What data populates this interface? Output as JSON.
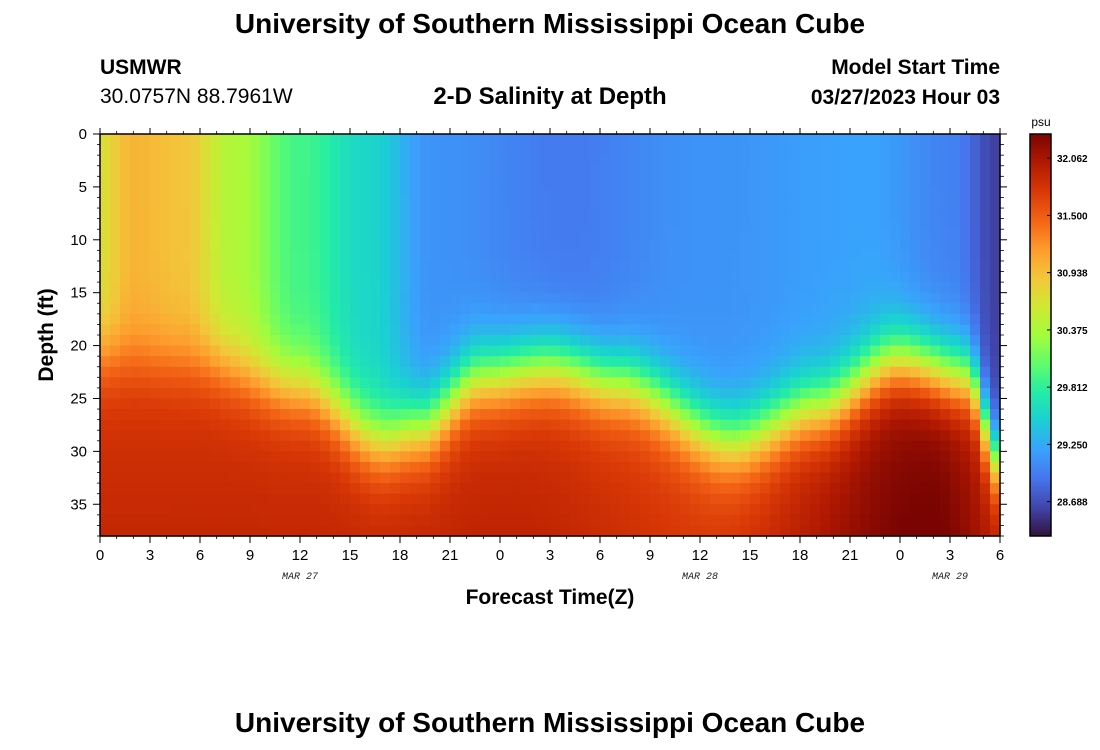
{
  "header": {
    "title": "University of Southern Mississippi Ocean Cube",
    "station_id": "USMWR",
    "station_coords": "30.0757N  88.7961W",
    "plot_title": "2-D Salinity at Depth",
    "model_start_label": "Model Start Time",
    "model_start_time": "03/27/2023 Hour 03"
  },
  "footer": {
    "title": "University of Southern Mississippi Ocean Cube"
  },
  "chart_data": {
    "type": "heatmap",
    "title": "2-D Salinity at Depth",
    "xlabel": "Forecast Time(Z)",
    "ylabel": "Depth (ft)",
    "x_ticks": [
      "0",
      "3",
      "6",
      "9",
      "12",
      "15",
      "18",
      "21",
      "0",
      "3",
      "6",
      "9",
      "12",
      "15",
      "18",
      "21",
      "0",
      "3",
      "6"
    ],
    "x_tick_hours": [
      0,
      3,
      6,
      9,
      12,
      15,
      18,
      21,
      24,
      27,
      30,
      33,
      36,
      39,
      42,
      45,
      48,
      51,
      54
    ],
    "x_range_hours": [
      0,
      54
    ],
    "date_labels": [
      {
        "text": "MAR 27",
        "hour": 12
      },
      {
        "text": "MAR 28",
        "hour": 36
      },
      {
        "text": "MAR 29",
        "hour": 51
      }
    ],
    "y_ticks": [
      0,
      5,
      10,
      15,
      20,
      25,
      30,
      35
    ],
    "y_range": [
      0,
      38
    ],
    "y_inverted": true,
    "colorbar": {
      "unit": "psu",
      "ticks": [
        32.062,
        31.5,
        30.938,
        30.375,
        29.812,
        29.25,
        28.688
      ],
      "tick_labels": [
        "32.062",
        "31.500",
        "30.938",
        "30.375",
        "29.812",
        "29.250",
        "28.688"
      ],
      "range": [
        28.35,
        32.3
      ],
      "colors": [
        "#30123b",
        "#4145ab",
        "#4675ed",
        "#39a2fc",
        "#1bcfd4",
        "#24eca6",
        "#61fc6c",
        "#a4fc3b",
        "#d1e834",
        "#f3c63a",
        "#fe9b2d",
        "#f36315",
        "#d93806",
        "#b11901",
        "#7a0402"
      ]
    },
    "surface_salinity_by_hour": [
      {
        "hour": 0,
        "value": 30.7
      },
      {
        "hour": 2,
        "value": 31.0
      },
      {
        "hour": 5,
        "value": 30.9
      },
      {
        "hour": 8,
        "value": 30.4
      },
      {
        "hour": 12,
        "value": 29.9
      },
      {
        "hour": 16,
        "value": 29.55
      },
      {
        "hour": 20,
        "value": 29.1
      },
      {
        "hour": 28,
        "value": 28.95
      },
      {
        "hour": 36,
        "value": 29.1
      },
      {
        "hour": 46,
        "value": 29.2
      },
      {
        "hour": 51,
        "value": 29.0
      },
      {
        "hour": 54,
        "value": 28.6
      }
    ],
    "halocline_depth_by_hour": [
      {
        "hour": 0,
        "depth": 21.0
      },
      {
        "hour": 6,
        "depth": 21.5
      },
      {
        "hour": 12,
        "depth": 24.0
      },
      {
        "hour": 17,
        "depth": 29.0
      },
      {
        "hour": 19,
        "depth": 28.0
      },
      {
        "hour": 23,
        "depth": 23.0
      },
      {
        "hour": 27,
        "depth": 22.0
      },
      {
        "hour": 31,
        "depth": 23.5
      },
      {
        "hour": 38,
        "depth": 29.0
      },
      {
        "hour": 43,
        "depth": 26.0
      },
      {
        "hour": 48,
        "depth": 21.5
      },
      {
        "hour": 52,
        "depth": 23.0
      },
      {
        "hour": 54,
        "depth": 31.0
      }
    ],
    "bottom_salinity_by_hour": [
      {
        "hour": 0,
        "value": 31.75
      },
      {
        "hour": 24,
        "value": 31.8
      },
      {
        "hour": 36,
        "value": 31.65
      },
      {
        "hour": 50,
        "value": 32.2
      },
      {
        "hour": 54,
        "value": 31.9
      }
    ]
  }
}
